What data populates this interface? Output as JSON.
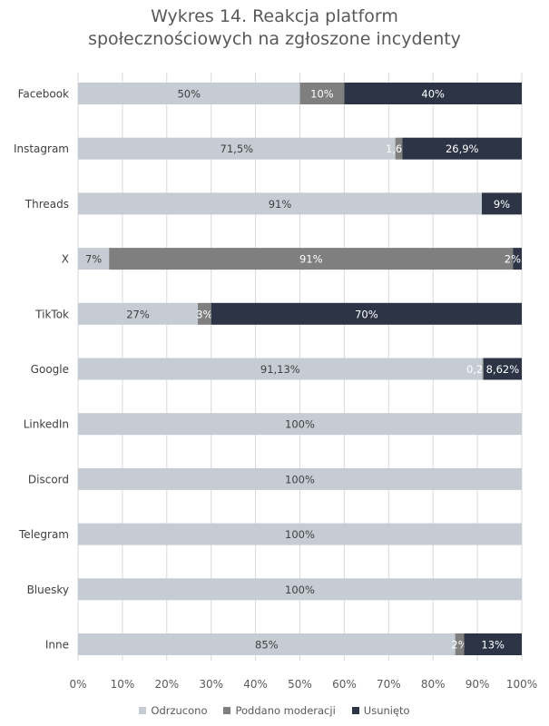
{
  "chart_data": {
    "type": "bar",
    "orientation": "horizontal",
    "stacked": "percent",
    "title_lines": [
      "Wykres 14. Reakcja platform",
      "społecznościowych na zgłoszone incydenty"
    ],
    "categories": [
      "Facebook",
      "Instagram",
      "Threads",
      "X",
      "TikTok",
      "Google",
      "LinkedIn",
      "Discord",
      "Telegram",
      "Bluesky",
      "Inne"
    ],
    "series": [
      {
        "name": "Odrzucono",
        "color": "#c5ccd3",
        "label_color": "#404040",
        "values": [
          50,
          71.5,
          91,
          7,
          27,
          91.13,
          100,
          100,
          100,
          100,
          85
        ],
        "labels": [
          "50%",
          "71,5%",
          "91%",
          "7%",
          "27%",
          "91,13%",
          "100%",
          "100%",
          "100%",
          "100%",
          "85%"
        ]
      },
      {
        "name": "Poddano moderacji",
        "color": "#7f7f7f",
        "label_color": "#ffffff",
        "values": [
          10,
          1.6,
          0,
          91,
          3,
          0.25,
          0,
          0,
          0,
          0,
          2
        ],
        "labels": [
          "10%",
          "1,6%",
          "",
          "91%",
          "3%",
          "0,25%",
          "",
          "",
          "",
          "",
          "2%"
        ]
      },
      {
        "name": "Usunięto",
        "color": "#2c3446",
        "label_color": "#ffffff",
        "values": [
          40,
          26.9,
          9,
          2,
          70,
          8.62,
          0,
          0,
          0,
          0,
          13
        ],
        "labels": [
          "40%",
          "26,9%",
          "9%",
          "2%",
          "70%",
          "8,62%",
          "",
          "",
          "",
          "",
          "13%"
        ]
      }
    ],
    "xlim": [
      0,
      100
    ],
    "xticks": [
      "0%",
      "10%",
      "20%",
      "30%",
      "40%",
      "50%",
      "60%",
      "70%",
      "80%",
      "90%",
      "100%"
    ],
    "grid": true,
    "legend_position": "bottom"
  }
}
